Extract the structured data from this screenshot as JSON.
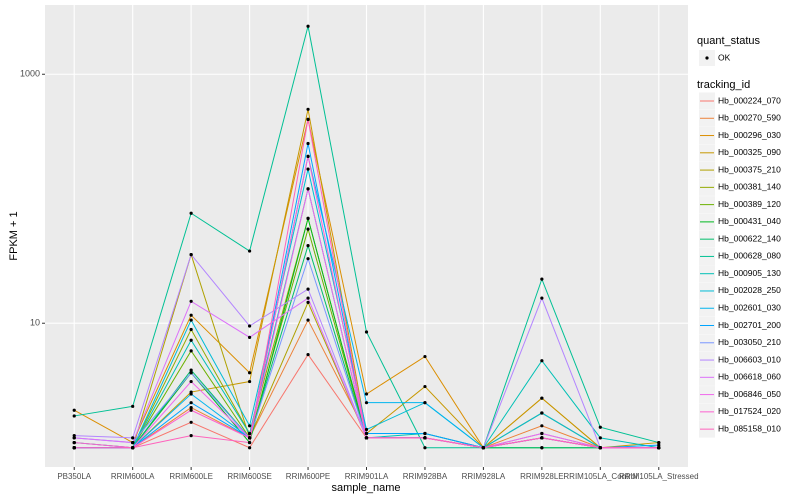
{
  "chart_data": {
    "type": "line",
    "x_label": "sample_name",
    "y_label": "FPKM + 1",
    "categories": [
      "PB350LA",
      "RRIM600LA",
      "RRIM600LE",
      "RRIM600SE",
      "RRIM600PE",
      "RRIM901LA",
      "RRIM928BA",
      "RRIM928LA",
      "RRIM928LE",
      "RRIM105LA_Control",
      "RRIM105LA_Stressed"
    ],
    "ylim": [
      0.7,
      3600
    ],
    "yticks": [
      10,
      1000
    ],
    "log_scale": true,
    "grid": true,
    "legend_position": "right",
    "point_legend": {
      "title": "quant_status",
      "entries": [
        "OK"
      ]
    },
    "series_legend_title": "tracking_id",
    "series": [
      {
        "name": "Hb_000224_070",
        "color": "#F8766D",
        "values": [
          1.0,
          1.0,
          1.6,
          1.0,
          5.6,
          1.2,
          1.2,
          1.0,
          1.3,
          1.0,
          1.0
        ]
      },
      {
        "name": "Hb_000270_590",
        "color": "#EC8239",
        "values": [
          1.1,
          1.0,
          2.1,
          1.2,
          10.6,
          1.3,
          1.3,
          1.0,
          1.5,
          1.0,
          1.0
        ]
      },
      {
        "name": "Hb_000296_030",
        "color": "#DB8E00",
        "values": [
          2.0,
          1.1,
          11.6,
          4.0,
          434,
          2.7,
          5.4,
          1.0,
          2.5,
          1.0,
          1.0
        ]
      },
      {
        "name": "Hb_000325_090",
        "color": "#C79800",
        "values": [
          1.0,
          1.0,
          2.8,
          3.4,
          523,
          1.3,
          3.1,
          1.0,
          2.5,
          1.0,
          1.1
        ]
      },
      {
        "name": "Hb_000375_210",
        "color": "#AFA100",
        "values": [
          1.0,
          1.0,
          35.6,
          1.2,
          14.7,
          1.2,
          1.2,
          1.0,
          1.9,
          1.0,
          1.0
        ]
      },
      {
        "name": "Hb_000381_140",
        "color": "#93AA00",
        "values": [
          1.0,
          1.0,
          8.9,
          1.3,
          69.5,
          1.2,
          1.2,
          1.0,
          1.2,
          1.0,
          1.0
        ]
      },
      {
        "name": "Hb_000389_120",
        "color": "#6BB100",
        "values": [
          1.0,
          1.0,
          6.0,
          1.2,
          57,
          1.2,
          1.2,
          1.0,
          1.2,
          1.0,
          1.0
        ]
      },
      {
        "name": "Hb_000431_040",
        "color": "#00B81F",
        "values": [
          1.0,
          1.0,
          4.0,
          1.1,
          69.5,
          1.2,
          1.2,
          1.0,
          1.0,
          1.0,
          1.0
        ]
      },
      {
        "name": "Hb_000622_140",
        "color": "#00BE6B",
        "values": [
          1.0,
          1.0,
          4.2,
          1.2,
          42,
          1.2,
          1.2,
          1.0,
          1.0,
          1.0,
          1.0
        ]
      },
      {
        "name": "Hb_000628_080",
        "color": "#00C094",
        "values": [
          1.8,
          2.15,
          76.5,
          38,
          2430,
          8.5,
          1.0,
          1.0,
          22.6,
          1.46,
          1.1
        ]
      },
      {
        "name": "Hb_000905_130",
        "color": "#00C0B5",
        "values": [
          1.0,
          1.0,
          7.3,
          1.3,
          120,
          1.2,
          1.3,
          1.0,
          5.0,
          1.2,
          1.0
        ]
      },
      {
        "name": "Hb_002028_250",
        "color": "#00BCD6",
        "values": [
          1.1,
          1.0,
          10.6,
          1.5,
          173,
          1.4,
          2.3,
          1.0,
          1.9,
          1.0,
          1.0
        ]
      },
      {
        "name": "Hb_002601_030",
        "color": "#00B5EE",
        "values": [
          1.0,
          1.0,
          2.7,
          1.2,
          219,
          2.3,
          2.3,
          1.0,
          1.2,
          1.0,
          1.0
        ]
      },
      {
        "name": "Hb_002701_200",
        "color": "#00A5FF",
        "values": [
          1.0,
          1.0,
          2.3,
          1.2,
          278,
          1.3,
          1.3,
          1.0,
          1.2,
          1.0,
          1.05
        ]
      },
      {
        "name": "Hb_003050_210",
        "color": "#7997FF",
        "values": [
          1.2,
          1.1,
          4.0,
          1.2,
          33,
          1.2,
          1.2,
          1.0,
          1.2,
          1.0,
          1.0
        ]
      },
      {
        "name": "Hb_006603_010",
        "color": "#B385FF",
        "values": [
          1.25,
          1.2,
          35.6,
          9.5,
          18.8,
          1.2,
          1.2,
          1.0,
          15.9,
          1.0,
          1.0
        ]
      },
      {
        "name": "Hb_006618_060",
        "color": "#DC71FA",
        "values": [
          1.2,
          1.1,
          15,
          7.7,
          15.9,
          1.2,
          1.2,
          1.0,
          1.3,
          1.0,
          1.0
        ]
      },
      {
        "name": "Hb_006846_050",
        "color": "#EF67EB",
        "values": [
          1.0,
          1.0,
          3.4,
          1.2,
          120,
          1.2,
          1.2,
          1.0,
          1.2,
          1.0,
          1.0
        ]
      },
      {
        "name": "Hb_017524_020",
        "color": "#FD61D1",
        "values": [
          1.1,
          1.0,
          2.0,
          1.2,
          219,
          1.2,
          1.2,
          1.0,
          1.2,
          1.0,
          1.0
        ]
      },
      {
        "name": "Hb_085158_010",
        "color": "#FF62BC",
        "values": [
          1.0,
          1.0,
          1.25,
          1.1,
          434,
          1.2,
          1.2,
          1.0,
          1.2,
          1.0,
          1.0
        ]
      }
    ]
  }
}
